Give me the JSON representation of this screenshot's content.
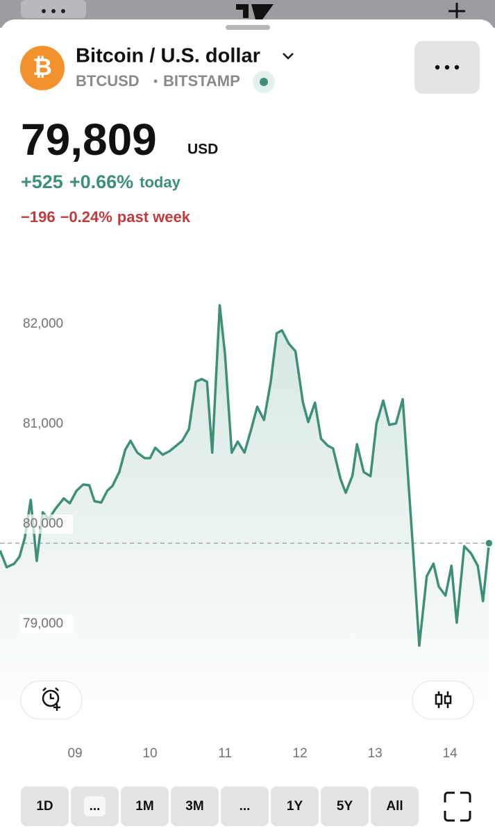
{
  "header": {
    "logo_symbol": "₿",
    "title": "Bitcoin / U.S. dollar",
    "symbol": "BTCUSD",
    "separator": "•",
    "exchange": "BITSTAMP"
  },
  "quote": {
    "price": "79,809",
    "currency": "USD",
    "today": {
      "change": "+525",
      "percent": "+0.66%",
      "label": "today"
    },
    "week": {
      "change": "−196",
      "percent": "−0.24%",
      "label": "past week"
    }
  },
  "chart_data": {
    "type": "line",
    "color": "#3e8f79",
    "reference_line": 79809,
    "x": [
      8,
      8.09,
      8.19,
      8.26,
      8.33,
      8.41,
      8.49,
      8.57,
      8.65,
      8.74,
      8.85,
      8.93,
      9.02,
      9.11,
      9.19,
      9.26,
      9.35,
      9.43,
      9.5,
      9.59,
      9.67,
      9.74,
      9.83,
      9.93,
      10,
      10.07,
      10.17,
      10.26,
      10.35,
      10.43,
      10.52,
      10.61,
      10.69,
      10.76,
      10.83,
      10.93,
      11,
      11.09,
      11.17,
      11.26,
      11.35,
      11.43,
      11.52,
      11.61,
      11.69,
      11.76,
      11.85,
      11.94,
      12.04,
      12.11,
      12.2,
      12.28,
      12.37,
      12.44,
      12.54,
      12.61,
      12.7,
      12.76,
      12.85,
      12.94,
      13.02,
      13.11,
      13.19,
      13.28,
      13.37,
      13.5,
      13.59,
      13.69,
      13.78,
      13.85,
      13.94,
      14.02,
      14.09,
      14.19,
      14.28,
      14.37,
      14.44,
      14.52
    ],
    "values": [
      79736,
      79569,
      79604,
      79674,
      79861,
      80243,
      79632,
      80118,
      80049,
      80153,
      80257,
      80208,
      80333,
      80396,
      80389,
      80229,
      80215,
      80333,
      80382,
      80521,
      80743,
      80833,
      80715,
      80660,
      80660,
      80764,
      80694,
      80729,
      80785,
      80833,
      80951,
      81424,
      81451,
      81424,
      80715,
      82188,
      81701,
      80715,
      80826,
      80715,
      80951,
      81174,
      81042,
      81424,
      81910,
      81938,
      81806,
      81729,
      81215,
      81021,
      81215,
      80854,
      80785,
      80757,
      80451,
      80313,
      80486,
      80799,
      80521,
      80479,
      81007,
      81236,
      80993,
      81007,
      81250,
      79826,
      78785,
      79479,
      79604,
      79375,
      79285,
      79583,
      79014,
      79778,
      79708,
      79583,
      79229,
      79809
    ],
    "xlim": [
      8,
      14.6
    ],
    "xticks": [
      {
        "value": 9,
        "label": "09"
      },
      10,
      11,
      12,
      13,
      14
    ],
    "ylim": [
      78500,
      82500
    ],
    "yticks": [
      {
        "value": 79000,
        "label": "79,000"
      },
      {
        "value": 80000,
        "label": "80,000"
      },
      {
        "value": 81000,
        "label": "81,000"
      },
      {
        "value": 82000,
        "label": "82,000"
      }
    ]
  },
  "ranges": [
    "1D",
    "...",
    "1M",
    "3M",
    "...",
    "1Y",
    "5Y",
    "All"
  ]
}
